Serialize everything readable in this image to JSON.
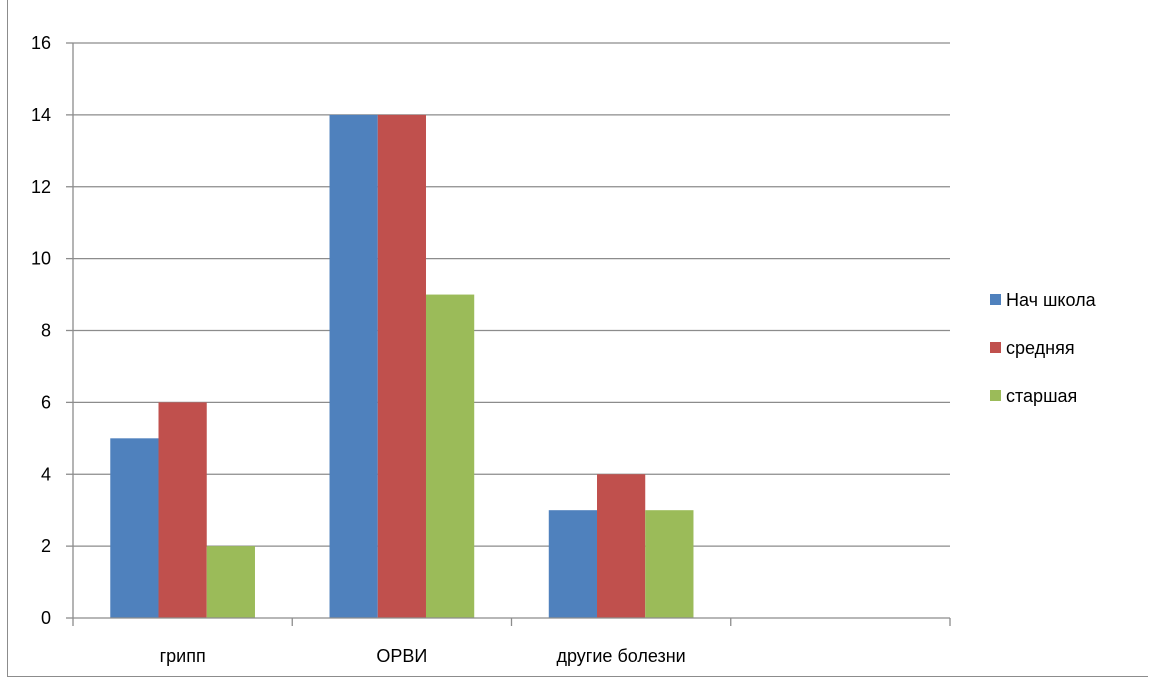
{
  "chart_data": {
    "type": "bar",
    "categories": [
      "грипп",
      "ОРВИ",
      "другие болезни",
      ""
    ],
    "series": [
      {
        "name": "Нач школа",
        "color": "#4f81bd",
        "values": [
          5,
          14,
          3,
          null
        ]
      },
      {
        "name": "средняя",
        "color": "#c0504d",
        "values": [
          6,
          14,
          4,
          null
        ]
      },
      {
        "name": "старшая",
        "color": "#9bbb59",
        "values": [
          2,
          9,
          3,
          null
        ]
      }
    ],
    "yticks": [
      "0",
      "2",
      "4",
      "6",
      "8",
      "10",
      "12",
      "14",
      "16"
    ],
    "ylim": [
      0,
      16
    ],
    "grid": true,
    "legend": "right",
    "title": "",
    "xlabel": "",
    "ylabel": ""
  }
}
